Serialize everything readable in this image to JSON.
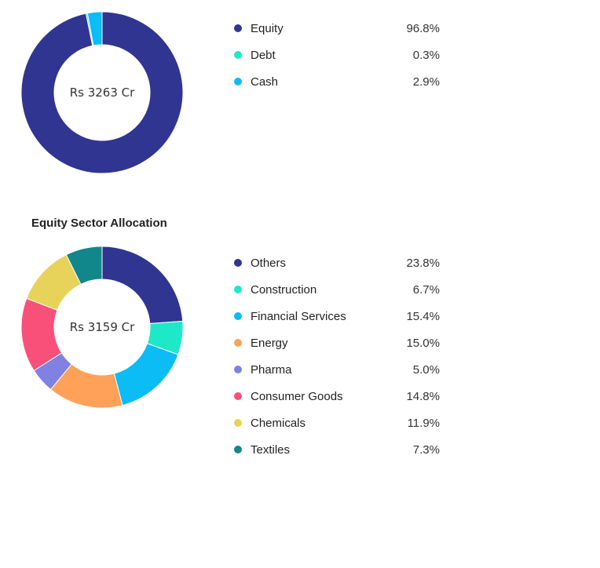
{
  "chart_data": [
    {
      "type": "pie",
      "center_label": "Rs 3263 Cr",
      "categories": [
        "Equity",
        "Debt",
        "Cash"
      ],
      "values": [
        96.8,
        0.3,
        2.9
      ],
      "value_labels": [
        "96.8%",
        "0.3%",
        "2.9%"
      ],
      "colors": [
        "#2f3590",
        "#1de9c8",
        "#0bbcf5"
      ],
      "legend": "right"
    },
    {
      "type": "pie",
      "title": "Equity Sector Allocation",
      "center_label": "Rs 3159 Cr",
      "categories": [
        "Others",
        "Construction",
        "Financial Services",
        "Energy",
        "Pharma",
        "Consumer Goods",
        "Chemicals",
        "Textiles"
      ],
      "values": [
        23.8,
        6.7,
        15.4,
        15.0,
        5.0,
        14.8,
        11.9,
        7.3
      ],
      "value_labels": [
        "23.8%",
        "6.7%",
        "15.4%",
        "15.0%",
        "5.0%",
        "14.8%",
        "11.9%",
        "7.3%"
      ],
      "colors": [
        "#2f3590",
        "#1de9c8",
        "#0bbcf5",
        "#ffa159",
        "#8081e2",
        "#f9507a",
        "#e8d35a",
        "#12878b"
      ],
      "legend": "right"
    }
  ]
}
